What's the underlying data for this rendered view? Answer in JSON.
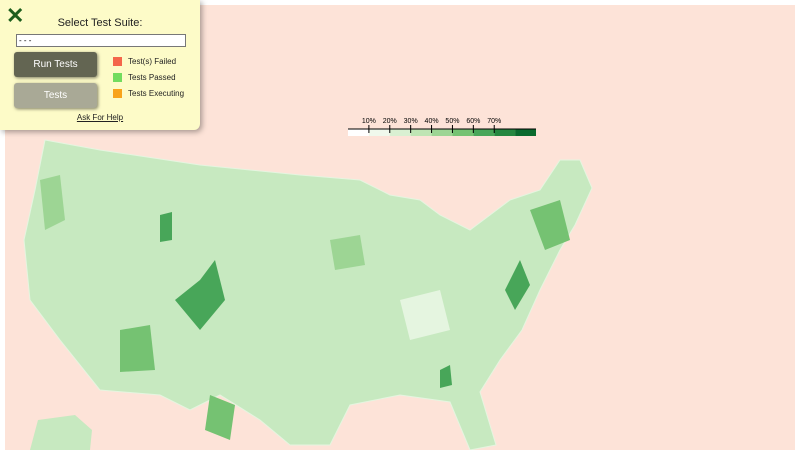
{
  "panel": {
    "title": "Select Test Suite:",
    "select_option": "- - -",
    "buttons": [
      "Run Tests",
      "Tests"
    ],
    "legend": [
      {
        "label": "Test(s) Failed",
        "color": "#f4664a"
      },
      {
        "label": "Tests Passed",
        "color": "#72dc5e"
      },
      {
        "label": "Tests Executing",
        "color": "#f8a31b"
      }
    ],
    "help_link": "Ask For Help"
  },
  "scale": {
    "ticks": [
      "10%",
      "20%",
      "30%",
      "40%",
      "50%",
      "60%",
      "70%"
    ],
    "colors": [
      "#ffffff",
      "#f0f9ec",
      "#d9f0d2",
      "#bfe5b4",
      "#9dd594",
      "#75c272",
      "#48a659",
      "#258740",
      "#0a6a2e"
    ]
  }
}
